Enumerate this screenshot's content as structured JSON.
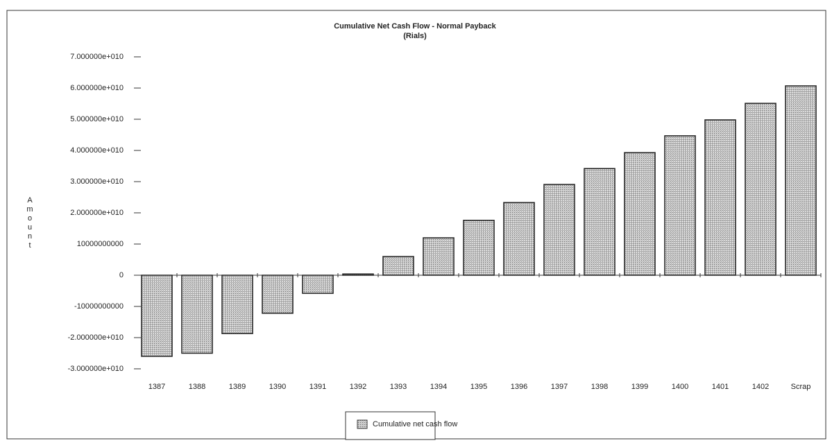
{
  "chart_data": {
    "type": "bar",
    "title": "Cumulative Net Cash Flow - Normal Payback",
    "subtitle": "(Rials)",
    "y_label": "Amount",
    "categories": [
      "1387",
      "1388",
      "1389",
      "1390",
      "1391",
      "1392",
      "1393",
      "1394",
      "1395",
      "1396",
      "1397",
      "1398",
      "1399",
      "1400",
      "1401",
      "1402",
      "Scrap"
    ],
    "series": [
      {
        "name": "Cumulative net cash flow",
        "color": "#c8c8c8",
        "values": [
          -26000000000,
          -25000000000,
          -18700000000,
          -12200000000,
          -5800000000,
          400000000,
          6000000000,
          12000000000,
          17600000000,
          23300000000,
          29100000000,
          34200000000,
          39300000000,
          44700000000,
          49800000000,
          55100000000,
          60700000000
        ]
      }
    ],
    "ylim": [
      -30000000000,
      70000000000
    ],
    "yticks": [
      {
        "value": -30000000000,
        "label": "-3.000000e+010"
      },
      {
        "value": -20000000000,
        "label": "-2.000000e+010"
      },
      -10000000000,
      0,
      10000000000,
      {
        "value": 20000000000,
        "label": "2.000000e+010"
      },
      {
        "value": 30000000000,
        "label": "3.000000e+010"
      },
      {
        "value": 40000000000,
        "label": "4.000000e+010"
      },
      {
        "value": 50000000000,
        "label": "5.000000e+010"
      },
      {
        "value": 60000000000,
        "label": "6.000000e+010"
      },
      {
        "value": 70000000000,
        "label": "7.000000e+010"
      }
    ]
  }
}
